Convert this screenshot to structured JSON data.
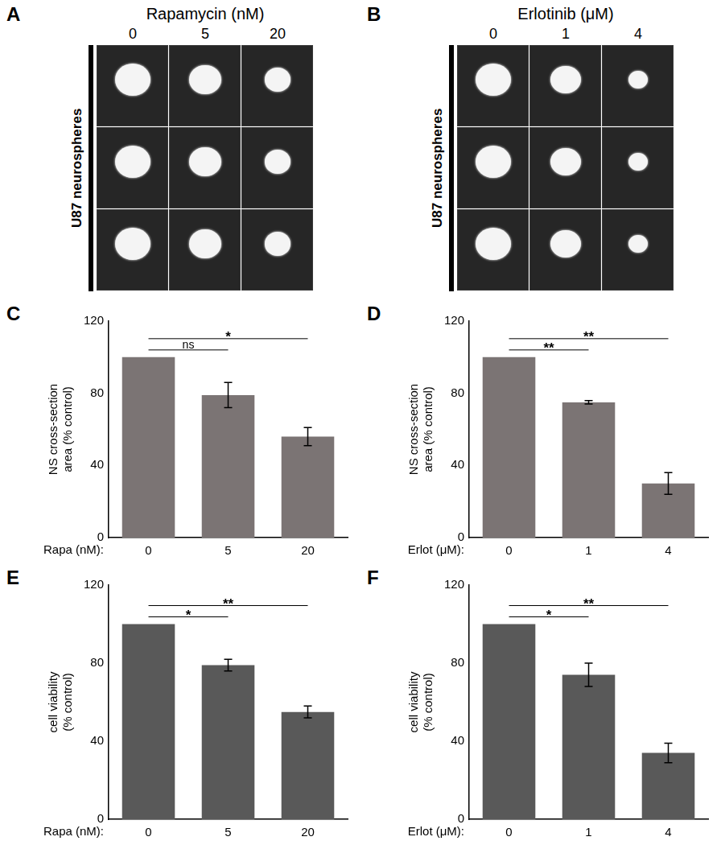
{
  "image_panels": [
    {
      "panel": "A",
      "title": "Rapamycin (nM)",
      "columns": [
        "0",
        "5",
        "20"
      ],
      "row_label": "U87 neurospheres",
      "rows": 3
    },
    {
      "panel": "B",
      "title": "Erlotinib (μM)",
      "columns": [
        "0",
        "1",
        "4"
      ],
      "row_label": "U87 neurospheres",
      "rows": 3
    }
  ],
  "chart_data": [
    {
      "panel": "C",
      "type": "bar",
      "y_label": [
        "NS cross-section",
        "area (% control)"
      ],
      "x_label": "Rapa (nM):",
      "categories": [
        "0",
        "5",
        "20"
      ],
      "values": [
        100,
        79,
        56
      ],
      "errors": [
        null,
        7,
        5
      ],
      "color": "#7b7474",
      "ylim": [
        0,
        120
      ],
      "yticks": [
        0,
        40,
        80,
        120
      ],
      "grid": false,
      "significance": [
        {
          "from": 0,
          "to": 1,
          "label": "ns"
        },
        {
          "from": 0,
          "to": 2,
          "label": "*"
        }
      ]
    },
    {
      "panel": "D",
      "type": "bar",
      "y_label": [
        "NS cross-section",
        "area (% control)"
      ],
      "x_label": "Erlot (μM):",
      "categories": [
        "0",
        "1",
        "4"
      ],
      "values": [
        100,
        75,
        30
      ],
      "errors": [
        null,
        1,
        6
      ],
      "color": "#7b7474",
      "ylim": [
        0,
        120
      ],
      "yticks": [
        0,
        40,
        80,
        120
      ],
      "grid": false,
      "significance": [
        {
          "from": 0,
          "to": 1,
          "label": "**"
        },
        {
          "from": 0,
          "to": 2,
          "label": "**"
        }
      ]
    },
    {
      "panel": "E",
      "type": "bar",
      "y_label": [
        "cell viability",
        "(% control)"
      ],
      "x_label": "Rapa (nM):",
      "categories": [
        "0",
        "5",
        "20"
      ],
      "values": [
        100,
        79,
        55
      ],
      "errors": [
        null,
        3,
        3
      ],
      "color": "#595959",
      "ylim": [
        0,
        120
      ],
      "yticks": [
        0,
        40,
        80,
        120
      ],
      "grid": false,
      "significance": [
        {
          "from": 0,
          "to": 1,
          "label": "*"
        },
        {
          "from": 0,
          "to": 2,
          "label": "**"
        }
      ]
    },
    {
      "panel": "F",
      "type": "bar",
      "y_label": [
        "cell viability",
        "(% control)"
      ],
      "x_label": "Erlot (μM):",
      "categories": [
        "0",
        "1",
        "4"
      ],
      "values": [
        100,
        74,
        34
      ],
      "errors": [
        null,
        6,
        5
      ],
      "color": "#595959",
      "ylim": [
        0,
        120
      ],
      "yticks": [
        0,
        40,
        80,
        120
      ],
      "grid": false,
      "significance": [
        {
          "from": 0,
          "to": 1,
          "label": "*"
        },
        {
          "from": 0,
          "to": 2,
          "label": "**"
        }
      ]
    }
  ]
}
